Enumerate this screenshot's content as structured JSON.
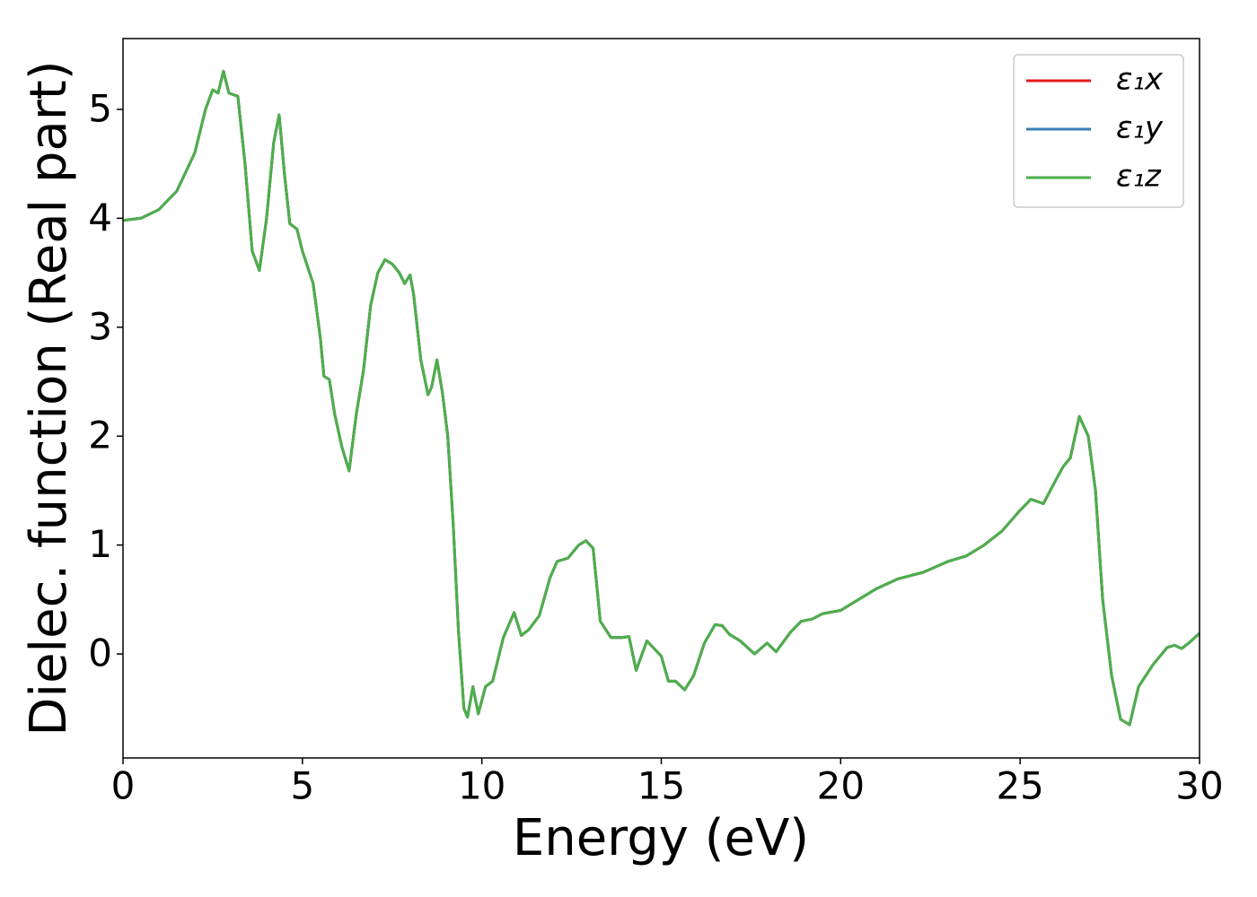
{
  "chart_data": {
    "type": "line",
    "xlabel": "Energy (eV)",
    "ylabel": "Dielec. function (Real part)",
    "x": [
      0,
      0.5,
      1.0,
      1.5,
      2.0,
      2.3,
      2.5,
      2.65,
      2.8,
      2.95,
      3.2,
      3.4,
      3.6,
      3.8,
      4.0,
      4.2,
      4.35,
      4.5,
      4.65,
      4.85,
      5.0,
      5.3,
      5.5,
      5.6,
      5.75,
      5.9,
      6.1,
      6.3,
      6.5,
      6.7,
      6.9,
      7.1,
      7.3,
      7.5,
      7.7,
      7.85,
      8.0,
      8.1,
      8.3,
      8.5,
      8.6,
      8.75,
      8.9,
      9.05,
      9.2,
      9.35,
      9.5,
      9.6,
      9.75,
      9.9,
      10.1,
      10.3,
      10.6,
      10.9,
      11.1,
      11.3,
      11.6,
      11.9,
      12.1,
      12.4,
      12.7,
      12.9,
      13.1,
      13.3,
      13.6,
      13.9,
      14.1,
      14.3,
      14.6,
      14.8,
      15.0,
      15.2,
      15.4,
      15.65,
      15.9,
      16.2,
      16.5,
      16.7,
      16.9,
      17.2,
      17.6,
      17.95,
      18.2,
      18.6,
      18.9,
      19.2,
      19.5,
      20.0,
      20.5,
      21.0,
      21.6,
      22.3,
      23.0,
      23.5,
      24.0,
      24.5,
      25.0,
      25.3,
      25.65,
      26.0,
      26.2,
      26.4,
      26.65,
      26.9,
      27.1,
      27.3,
      27.55,
      27.8,
      28.05,
      28.3,
      28.7,
      29.1,
      29.3,
      29.5,
      29.7,
      30.0
    ],
    "series": [
      {
        "name": "ε₁x",
        "color": "#e41a1c",
        "values": [
          3.98,
          4.0,
          4.08,
          4.25,
          4.6,
          5.0,
          5.18,
          5.15,
          5.35,
          5.15,
          5.12,
          4.5,
          3.7,
          3.52,
          4.0,
          4.7,
          4.95,
          4.4,
          3.95,
          3.9,
          3.7,
          3.4,
          2.9,
          2.55,
          2.52,
          2.2,
          1.9,
          1.68,
          2.2,
          2.6,
          3.2,
          3.5,
          3.62,
          3.58,
          3.5,
          3.4,
          3.48,
          3.3,
          2.7,
          2.38,
          2.45,
          2.7,
          2.4,
          2.0,
          1.2,
          0.2,
          -0.5,
          -0.58,
          -0.3,
          -0.55,
          -0.3,
          -0.25,
          0.15,
          0.38,
          0.17,
          0.22,
          0.35,
          0.7,
          0.85,
          0.88,
          1.0,
          1.04,
          0.97,
          0.3,
          0.15,
          0.15,
          0.16,
          -0.15,
          0.12,
          0.05,
          -0.02,
          -0.25,
          -0.25,
          -0.33,
          -0.2,
          0.1,
          0.27,
          0.26,
          0.18,
          0.12,
          0.0,
          0.1,
          0.02,
          0.2,
          0.3,
          0.32,
          0.37,
          0.4,
          0.5,
          0.6,
          0.69,
          0.75,
          0.85,
          0.9,
          1.0,
          1.13,
          1.32,
          1.42,
          1.38,
          1.6,
          1.72,
          1.8,
          2.18,
          2.0,
          1.5,
          0.5,
          -0.2,
          -0.6,
          -0.65,
          -0.3,
          -0.1,
          0.06,
          0.08,
          0.05,
          0.1,
          0.19
        ]
      },
      {
        "name": "ε₁y",
        "color": "#377eb8",
        "values": [
          3.98,
          4.0,
          4.08,
          4.25,
          4.6,
          5.0,
          5.18,
          5.15,
          5.35,
          5.15,
          5.12,
          4.5,
          3.7,
          3.52,
          4.0,
          4.7,
          4.95,
          4.4,
          3.95,
          3.9,
          3.7,
          3.4,
          2.9,
          2.55,
          2.52,
          2.2,
          1.9,
          1.68,
          2.2,
          2.6,
          3.2,
          3.5,
          3.62,
          3.58,
          3.5,
          3.4,
          3.48,
          3.3,
          2.7,
          2.38,
          2.45,
          2.7,
          2.4,
          2.0,
          1.2,
          0.2,
          -0.5,
          -0.58,
          -0.3,
          -0.55,
          -0.3,
          -0.25,
          0.15,
          0.38,
          0.17,
          0.22,
          0.35,
          0.7,
          0.85,
          0.88,
          1.0,
          1.04,
          0.97,
          0.3,
          0.15,
          0.15,
          0.16,
          -0.15,
          0.12,
          0.05,
          -0.02,
          -0.25,
          -0.25,
          -0.33,
          -0.2,
          0.1,
          0.27,
          0.26,
          0.18,
          0.12,
          0.0,
          0.1,
          0.02,
          0.2,
          0.3,
          0.32,
          0.37,
          0.4,
          0.5,
          0.6,
          0.69,
          0.75,
          0.85,
          0.9,
          1.0,
          1.13,
          1.32,
          1.42,
          1.38,
          1.6,
          1.72,
          1.8,
          2.18,
          2.0,
          1.5,
          0.5,
          -0.2,
          -0.6,
          -0.65,
          -0.3,
          -0.1,
          0.06,
          0.08,
          0.05,
          0.1,
          0.19
        ]
      },
      {
        "name": "ε₁z",
        "color": "#4daf4a",
        "values": [
          3.98,
          4.0,
          4.08,
          4.25,
          4.6,
          5.0,
          5.18,
          5.15,
          5.35,
          5.15,
          5.12,
          4.5,
          3.7,
          3.52,
          4.0,
          4.7,
          4.95,
          4.4,
          3.95,
          3.9,
          3.7,
          3.4,
          2.9,
          2.55,
          2.52,
          2.2,
          1.9,
          1.68,
          2.2,
          2.6,
          3.2,
          3.5,
          3.62,
          3.58,
          3.5,
          3.4,
          3.48,
          3.3,
          2.7,
          2.38,
          2.45,
          2.7,
          2.4,
          2.0,
          1.2,
          0.2,
          -0.5,
          -0.58,
          -0.3,
          -0.55,
          -0.3,
          -0.25,
          0.15,
          0.38,
          0.17,
          0.22,
          0.35,
          0.7,
          0.85,
          0.88,
          1.0,
          1.04,
          0.97,
          0.3,
          0.15,
          0.15,
          0.16,
          -0.15,
          0.12,
          0.05,
          -0.02,
          -0.25,
          -0.25,
          -0.33,
          -0.2,
          0.1,
          0.27,
          0.26,
          0.18,
          0.12,
          0.0,
          0.1,
          0.02,
          0.2,
          0.3,
          0.32,
          0.37,
          0.4,
          0.5,
          0.6,
          0.69,
          0.75,
          0.85,
          0.9,
          1.0,
          1.13,
          1.32,
          1.42,
          1.38,
          1.6,
          1.72,
          1.8,
          2.18,
          2.0,
          1.5,
          0.5,
          -0.2,
          -0.6,
          -0.65,
          -0.3,
          -0.1,
          0.06,
          0.08,
          0.05,
          0.1,
          0.19
        ]
      }
    ],
    "xlim": [
      0,
      30
    ],
    "xticks": [
      0,
      5,
      10,
      15,
      20,
      25,
      30
    ],
    "ylim": [
      -0.955,
      5.65
    ],
    "yticks": [
      0,
      1,
      2,
      3,
      4,
      5
    ],
    "grid": false,
    "legend": "upper right"
  }
}
